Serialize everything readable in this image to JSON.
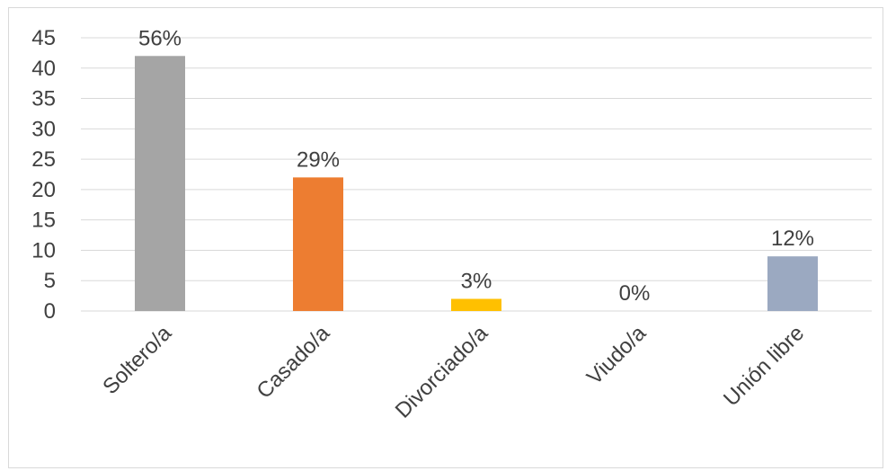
{
  "chart_data": {
    "type": "bar",
    "categories": [
      "Soltero/a",
      "Casado/a",
      "Divorciado/a",
      "Viudo/a",
      "Unión libre"
    ],
    "values": [
      42,
      22,
      2,
      0,
      9
    ],
    "data_labels": [
      "56%",
      "29%",
      "3%",
      "0%",
      "12%"
    ],
    "colors": [
      "#a5a5a5",
      "#ed7d31",
      "#ffc000",
      "#4472c4",
      "#9ba9c1"
    ],
    "yticks": [
      0,
      5,
      10,
      15,
      20,
      25,
      30,
      35,
      40,
      45
    ],
    "ylim": [
      0,
      45
    ],
    "grid": true,
    "legend": "none",
    "title": "",
    "xlabel": "",
    "ylabel": ""
  }
}
